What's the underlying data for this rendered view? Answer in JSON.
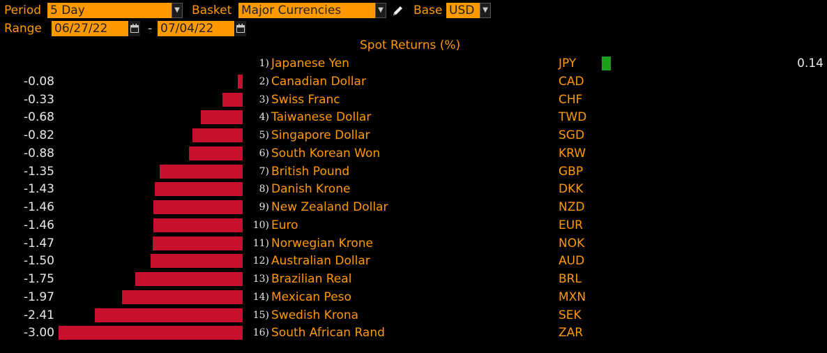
{
  "controls": {
    "period_label": "Period",
    "period_value": "5 Day",
    "basket_label": "Basket",
    "basket_value": "Major Currencies",
    "base_label": "Base",
    "base_value": "USD",
    "range_label": "Range",
    "range_start": "06/27/22",
    "range_separator": "-",
    "range_end": "07/04/22"
  },
  "colors": {
    "negative": "#c8102e",
    "positive": "#1aa01a",
    "accent": "#ff9900"
  },
  "chart_data": {
    "type": "bar",
    "title": "Spot Returns (%)",
    "ranks": [
      "1)",
      "2)",
      "3)",
      "4)",
      "5)",
      "6)",
      "7)",
      "8)",
      "9)",
      "10)",
      "11)",
      "12)",
      "13)",
      "14)",
      "15)",
      "16)"
    ],
    "categories": [
      "Japanese Yen",
      "Canadian Dollar",
      "Swiss Franc",
      "Taiwanese Dollar",
      "Singapore Dollar",
      "South Korean Won",
      "British Pound",
      "Danish Krone",
      "New Zealand Dollar",
      "Euro",
      "Norwegian Krone",
      "Australian Dollar",
      "Brazilian Real",
      "Mexican Peso",
      "Swedish Krona",
      "South African Rand"
    ],
    "codes": [
      "JPY",
      "CAD",
      "CHF",
      "TWD",
      "SGD",
      "KRW",
      "GBP",
      "DKK",
      "NZD",
      "EUR",
      "NOK",
      "AUD",
      "BRL",
      "MXN",
      "SEK",
      "ZAR"
    ],
    "values": [
      0.14,
      -0.08,
      -0.33,
      -0.68,
      -0.82,
      -0.88,
      -1.35,
      -1.43,
      -1.46,
      -1.46,
      -1.47,
      -1.5,
      -1.75,
      -1.97,
      -2.41,
      -3.0
    ],
    "value_labels": [
      "0.14",
      "-0.08",
      "-0.33",
      "-0.68",
      "-0.82",
      "-0.88",
      "-1.35",
      "-1.43",
      "-1.46",
      "-1.46",
      "-1.47",
      "-1.50",
      "-1.75",
      "-1.97",
      "-2.41",
      "-3.00"
    ]
  }
}
